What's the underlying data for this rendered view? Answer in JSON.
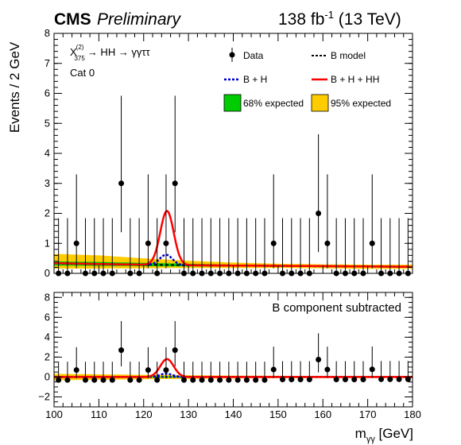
{
  "header": {
    "cms": "CMS",
    "preliminary": "Preliminary",
    "lumi_value": "138 fb",
    "lumi_exp": "-1",
    "lumi_energy": " (13 TeV)"
  },
  "annotations": {
    "chi_base": "X",
    "chi_sup": "(2)",
    "chi_sub": "375",
    "process": "→ HH → γγττ",
    "category": "Cat 0",
    "lower_label": "B component subtracted"
  },
  "legend": {
    "data": "Data",
    "bmodel": "B model",
    "bh": "B + H",
    "bhhh": "B + H + HH",
    "exp68": "68% expected",
    "exp95": "95% expected"
  },
  "colors": {
    "band68": "#00cc00",
    "band95": "#ffcc00",
    "signal": "#ff0000",
    "bh": "#0000cc",
    "bmodel": "#000000",
    "data": "#000000"
  },
  "chart_data": [
    {
      "type": "scatter",
      "panel": "upper",
      "ylabel": "Events / 2 GeV",
      "xlabel": "",
      "ylim": [
        0,
        8
      ],
      "xlim": [
        100,
        180
      ],
      "yticks": [
        "0",
        "1",
        "2",
        "3",
        "4",
        "5",
        "6",
        "7",
        "8"
      ],
      "x": [
        101,
        103,
        105,
        107,
        109,
        111,
        113,
        115,
        117,
        119,
        121,
        123,
        125,
        127,
        129,
        131,
        133,
        135,
        137,
        139,
        141,
        143,
        145,
        147,
        149,
        151,
        153,
        155,
        157,
        159,
        161,
        163,
        165,
        167,
        169,
        171,
        173,
        175,
        177,
        179
      ],
      "data_y": [
        0,
        0,
        1,
        0,
        0,
        0,
        0,
        3,
        0,
        0,
        1,
        0,
        1,
        3,
        0,
        0,
        0,
        0,
        0,
        0,
        0,
        0,
        0,
        0,
        1,
        0,
        0,
        0,
        0,
        2,
        1,
        0,
        0,
        0,
        0,
        1,
        0,
        0,
        0,
        0
      ],
      "data_err_up": [
        1.84,
        1.84,
        2.3,
        1.84,
        1.84,
        1.84,
        1.84,
        2.92,
        1.84,
        1.84,
        2.3,
        1.84,
        2.3,
        2.92,
        1.84,
        1.84,
        1.84,
        1.84,
        1.84,
        1.84,
        1.84,
        1.84,
        1.84,
        1.84,
        2.3,
        1.84,
        1.84,
        1.84,
        1.84,
        2.64,
        2.3,
        1.84,
        1.84,
        1.84,
        1.84,
        2.3,
        1.84,
        1.84,
        1.84,
        1.84
      ],
      "data_err_down": [
        0,
        0,
        0.83,
        0,
        0,
        0,
        0,
        1.63,
        0,
        0,
        0.83,
        0,
        0.83,
        1.63,
        0,
        0,
        0,
        0,
        0,
        0,
        0,
        0,
        0,
        0,
        0.83,
        0,
        0,
        0,
        0,
        1.29,
        0.83,
        0,
        0,
        0,
        0,
        0.83,
        0,
        0,
        0,
        0
      ],
      "series": [
        {
          "name": "B model",
          "x": [
            100,
            110,
            120,
            130,
            140,
            150,
            160,
            170,
            180
          ],
          "values": [
            0.34,
            0.31,
            0.29,
            0.27,
            0.26,
            0.25,
            0.24,
            0.23,
            0.22
          ]
        },
        {
          "name": "B + H",
          "peak_x": 125,
          "peak_value": 0.62
        },
        {
          "name": "B + H + HH",
          "peak_x": 125.2,
          "peak_value": 2.08
        },
        {
          "name": "68% expected",
          "x": [
            100,
            110,
            120,
            130,
            140,
            150,
            160,
            170,
            180
          ],
          "lo": [
            0.26,
            0.25,
            0.24,
            0.23,
            0.23,
            0.22,
            0.21,
            0.2,
            0.19
          ],
          "hi": [
            0.4,
            0.38,
            0.35,
            0.32,
            0.29,
            0.27,
            0.26,
            0.25,
            0.24
          ]
        },
        {
          "name": "95% expected",
          "x": [
            100,
            110,
            120,
            130,
            140,
            150,
            160,
            170,
            180
          ],
          "lo": [
            0.16,
            0.16,
            0.17,
            0.18,
            0.18,
            0.18,
            0.17,
            0.15,
            0.15
          ],
          "hi": [
            0.65,
            0.6,
            0.5,
            0.42,
            0.36,
            0.32,
            0.3,
            0.29,
            0.29
          ]
        }
      ]
    },
    {
      "type": "scatter",
      "panel": "lower",
      "title": "B component subtracted",
      "xlabel": "m_γγ [GeV]",
      "ylabel": "",
      "ylim": [
        -3,
        8.5
      ],
      "xlim": [
        100,
        180
      ],
      "yticks": [
        "−2",
        "0",
        "2",
        "4",
        "6",
        "8"
      ],
      "xticks": [
        "100",
        "110",
        "120",
        "130",
        "140",
        "150",
        "160",
        "170",
        "180"
      ],
      "x": [
        101,
        103,
        105,
        107,
        109,
        111,
        113,
        115,
        117,
        119,
        121,
        123,
        125,
        127,
        129,
        131,
        133,
        135,
        137,
        139,
        141,
        143,
        145,
        147,
        149,
        151,
        153,
        155,
        157,
        159,
        161,
        163,
        165,
        167,
        169,
        171,
        173,
        175,
        177,
        179
      ],
      "data_y": [
        -0.3,
        -0.3,
        0.7,
        -0.3,
        -0.3,
        -0.3,
        -0.3,
        2.7,
        -0.3,
        -0.3,
        0.7,
        -0.3,
        0.7,
        2.7,
        -0.3,
        -0.3,
        -0.3,
        -0.3,
        -0.3,
        -0.3,
        -0.3,
        -0.3,
        -0.3,
        -0.3,
        0.75,
        -0.25,
        -0.25,
        -0.25,
        -0.25,
        1.75,
        0.75,
        -0.25,
        -0.25,
        -0.25,
        -0.25,
        0.77,
        -0.23,
        -0.23,
        -0.23,
        -0.23
      ],
      "data_err_up": [
        1.84,
        1.84,
        2.3,
        1.84,
        1.84,
        1.84,
        1.84,
        2.92,
        1.84,
        1.84,
        2.3,
        1.84,
        2.3,
        2.92,
        1.84,
        1.84,
        1.84,
        1.84,
        1.84,
        1.84,
        1.84,
        1.84,
        1.84,
        1.84,
        2.3,
        1.84,
        1.84,
        1.84,
        1.84,
        2.64,
        2.3,
        1.84,
        1.84,
        1.84,
        1.84,
        2.3,
        1.84,
        1.84,
        1.84,
        1.84
      ],
      "data_err_down": [
        0,
        0,
        0.83,
        0,
        0,
        0,
        0,
        1.63,
        0,
        0,
        0.83,
        0,
        0.83,
        1.63,
        0,
        0,
        0,
        0,
        0,
        0,
        0,
        0,
        0,
        0,
        0.83,
        0,
        0,
        0,
        0,
        1.29,
        0.83,
        0,
        0,
        0,
        0,
        0.83,
        0,
        0,
        0,
        0
      ],
      "series": [
        {
          "name": "B + H",
          "peak_x": 125,
          "peak_value": 0.33
        },
        {
          "name": "B + H + HH",
          "peak_x": 125.2,
          "peak_value": 1.8
        },
        {
          "name": "68% expected",
          "half_width": [
            0.08,
            0.07,
            0.06,
            0.05,
            0.04,
            0.04,
            0.04,
            0.04,
            0.04
          ]
        },
        {
          "name": "95% expected",
          "half_width": [
            0.32,
            0.27,
            0.22,
            0.18,
            0.14,
            0.12,
            0.11,
            0.11,
            0.11
          ]
        }
      ]
    }
  ]
}
